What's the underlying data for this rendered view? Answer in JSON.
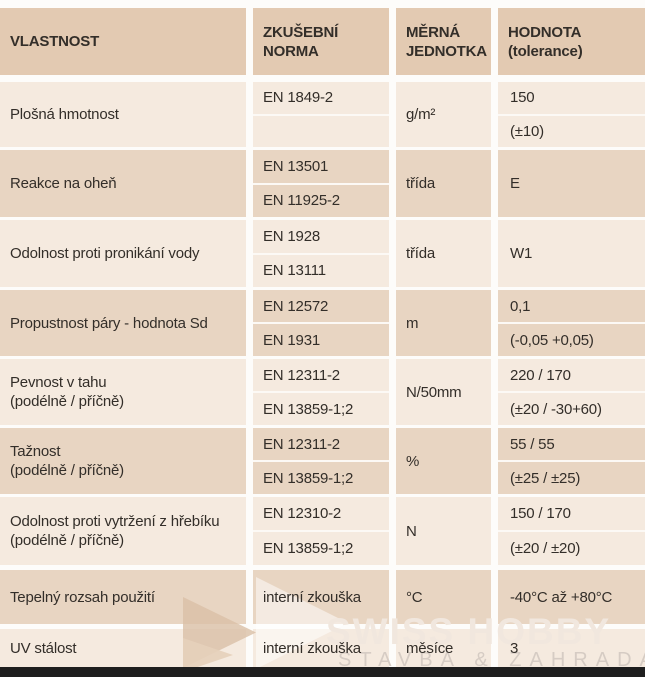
{
  "colors": {
    "header_bg": "#e3cab2",
    "row_light": "#f5eadf",
    "row_dark": "#e8d5c2",
    "gap": "#fcf9f5",
    "text": "#332e29",
    "bottom_bar": "#1e1e1e",
    "watermark_title": "#f1e7de",
    "watermark_subtitle": "#d6ccc4",
    "watermark_logo": "#d9bfa6"
  },
  "table": {
    "header": [
      {
        "lines": [
          "VLASTNOST"
        ]
      },
      {
        "lines": [
          "ZKUŠEBNÍ",
          "NORMA"
        ]
      },
      {
        "lines": [
          "MĚRNÁ",
          "JEDNOTKA"
        ]
      },
      {
        "lines": [
          "HODNOTA",
          "(tolerance)"
        ]
      }
    ],
    "rows": [
      {
        "property_lines": [
          "Plošná hmotnost"
        ],
        "norms": [
          "EN 1849-2",
          ""
        ],
        "unit": "g/m²",
        "values": [
          "150",
          "(±10)"
        ],
        "shade": "light"
      },
      {
        "property_lines": [
          "Reakce na oheň"
        ],
        "norms": [
          "EN 13501",
          "EN 11925-2"
        ],
        "unit": "třída",
        "values": [
          "E"
        ],
        "shade": "dark"
      },
      {
        "property_lines": [
          "Odolnost proti pronikání vody"
        ],
        "norms": [
          "EN 1928",
          "EN 13111"
        ],
        "unit": "třída",
        "values": [
          "W1"
        ],
        "shade": "light"
      },
      {
        "property_lines": [
          "Propustnost páry - hodnota Sd"
        ],
        "norms": [
          "EN 12572",
          "EN 1931"
        ],
        "unit": "m",
        "values": [
          "0,1",
          "(-0,05 +0,05)"
        ],
        "shade": "dark"
      },
      {
        "property_lines": [
          "Pevnost v tahu",
          "(podélně / příčně)"
        ],
        "norms": [
          "EN 12311-2",
          "EN 13859-1;2"
        ],
        "unit": "N/50mm",
        "values": [
          "220 / 170",
          "(±20 / -30+60)"
        ],
        "shade": "light"
      },
      {
        "property_lines": [
          "Tažnost",
          "(podélně / příčně)"
        ],
        "norms": [
          "EN 12311-2",
          "EN 13859-1;2"
        ],
        "unit": "%",
        "values": [
          "55 / 55",
          "(±25 / ±25)"
        ],
        "shade": "dark"
      },
      {
        "property_lines": [
          "Odolnost proti vytržení z hřebíku",
          "(podélně / příčně)"
        ],
        "norms": [
          "EN 12310-2",
          "EN 13859-1;2"
        ],
        "unit": "N",
        "values": [
          "150 / 170",
          "(±20 / ±20)"
        ],
        "shade": "light"
      },
      {
        "property_lines": [
          "Tepelný rozsah použití"
        ],
        "norms": [
          "interní zkouška"
        ],
        "unit": "°C",
        "values": [
          "-40°C až +80°C"
        ],
        "shade": "dark"
      },
      {
        "property_lines": [
          "UV stálost"
        ],
        "norms": [
          "interní zkouška"
        ],
        "unit": "měsíce",
        "values": [
          "3"
        ],
        "shade": "light"
      }
    ]
  },
  "watermark": {
    "line1": "SWISS HOBBY",
    "line2": "STAVBA & ZAHRADA"
  }
}
